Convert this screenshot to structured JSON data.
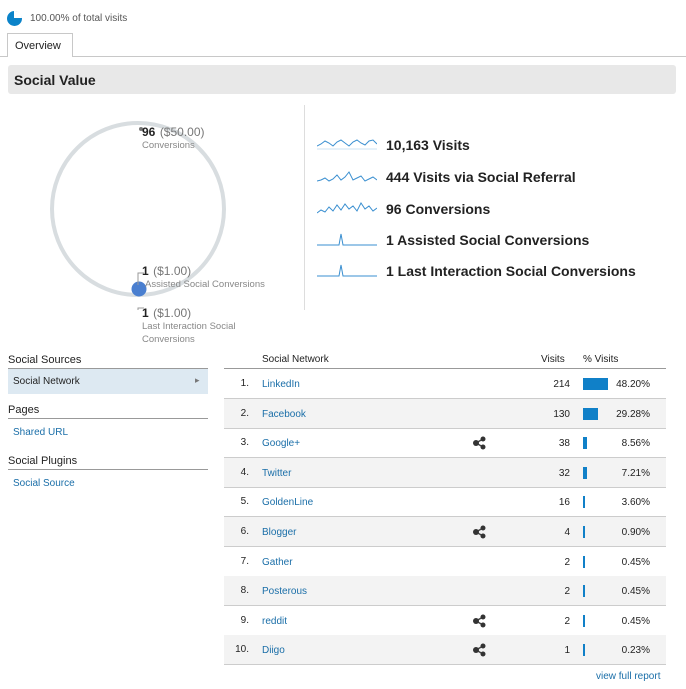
{
  "segment": {
    "text": "100.00% of total visits",
    "color": "#0b83c9"
  },
  "tabs": [
    {
      "label": "Overview"
    }
  ],
  "section_title": "Social Value",
  "circle": {
    "conversions": {
      "num": "96",
      "money": "($50.00)",
      "label": "Conversions"
    },
    "assisted": {
      "num": "1",
      "money": "($1.00)",
      "label": "Assisted Social Conversions"
    },
    "last_interaction": {
      "num": "1",
      "money": "($1.00)",
      "label_line1": "Last Interaction Social",
      "label_line2": "Conversions"
    }
  },
  "metrics": [
    {
      "text": "10,163 Visits",
      "spark": "visits"
    },
    {
      "text": "444 Visits via Social Referral",
      "spark": "referral"
    },
    {
      "text": "96 Conversions",
      "spark": "conversions"
    },
    {
      "text": "1 Assisted Social Conversions",
      "spark": "spike"
    },
    {
      "text": "1 Last Interaction Social Conversions",
      "spark": "spike"
    }
  ],
  "sidebar": {
    "sources_heading": "Social Sources",
    "active_item": "Social Network",
    "pages_heading": "Pages",
    "pages_link": "Shared URL",
    "plugins_heading": "Social Plugins",
    "plugins_link": "Social Source"
  },
  "table": {
    "headers": {
      "network": "Social Network",
      "visits": "Visits",
      "pct": "% Visits"
    },
    "rows": [
      {
        "idx": "1.",
        "name": "LinkedIn",
        "visits": "214",
        "pct": "48.20%",
        "pct_value": 48.2,
        "graph_icon": false
      },
      {
        "idx": "2.",
        "name": "Facebook",
        "visits": "130",
        "pct": "29.28%",
        "pct_value": 29.28,
        "graph_icon": false
      },
      {
        "idx": "3.",
        "name": "Google+",
        "visits": "38",
        "pct": "8.56%",
        "pct_value": 8.56,
        "graph_icon": true
      },
      {
        "idx": "4.",
        "name": "Twitter",
        "visits": "32",
        "pct": "7.21%",
        "pct_value": 7.21,
        "graph_icon": false
      },
      {
        "idx": "5.",
        "name": "GoldenLine",
        "visits": "16",
        "pct": "3.60%",
        "pct_value": 3.6,
        "graph_icon": false
      },
      {
        "idx": "6.",
        "name": "Blogger",
        "visits": "4",
        "pct": "0.90%",
        "pct_value": 0.9,
        "graph_icon": true
      },
      {
        "idx": "7.",
        "name": "Gather",
        "visits": "2",
        "pct": "0.45%",
        "pct_value": 0.45,
        "graph_icon": false
      },
      {
        "idx": "8.",
        "name": "Posterous",
        "visits": "2",
        "pct": "0.45%",
        "pct_value": 0.45,
        "graph_icon": false
      },
      {
        "idx": "9.",
        "name": "reddit",
        "visits": "2",
        "pct": "0.45%",
        "pct_value": 0.45,
        "graph_icon": true
      },
      {
        "idx": "10.",
        "name": "Diigo",
        "visits": "1",
        "pct": "0.23%",
        "pct_value": 0.23,
        "graph_icon": true
      }
    ]
  },
  "footer_link": "view full report",
  "colors": {
    "link": "#1a6ea8",
    "bar": "#1080c8",
    "spark": "#3a8fd0",
    "ring": "#d8dde0",
    "dot": "#4a7fd0"
  }
}
